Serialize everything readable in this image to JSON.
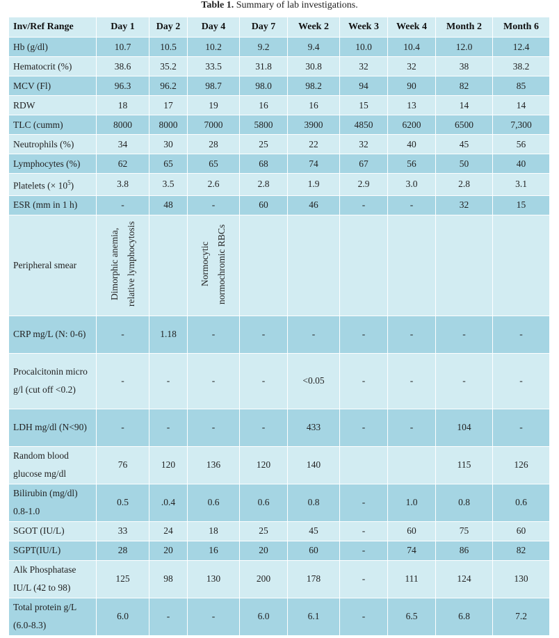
{
  "caption": {
    "label": "Table 1.",
    "text": "Summary of lab investigations."
  },
  "columns": [
    "Inv/Ref Range",
    "Day 1",
    "Day 2",
    "Day 4",
    "Day 7",
    "Week 2",
    "Week 3",
    "Week 4",
    "Month 2",
    "Month 6"
  ],
  "rows": [
    {
      "label": "Hb (g/dl)",
      "values": [
        "10.7",
        "10.5",
        "10.2",
        "9.2",
        "9.4",
        "10.0",
        "10.4",
        "12.0",
        "12.4"
      ]
    },
    {
      "label": "Hematocrit (%)",
      "values": [
        "38.6",
        "35.2",
        "33.5",
        "31.8",
        "30.8",
        "32",
        "32",
        "38",
        "38.2"
      ]
    },
    {
      "label": "MCV (Fl)",
      "values": [
        "96.3",
        "96.2",
        "98.7",
        "98.0",
        "98.2",
        "94",
        "90",
        "82",
        "85"
      ]
    },
    {
      "label": "RDW",
      "values": [
        "18",
        "17",
        "19",
        "16",
        "16",
        "15",
        "13",
        "14",
        "14"
      ]
    },
    {
      "label": "TLC (cumm)",
      "values": [
        "8000",
        "8000",
        "7000",
        "5800",
        "3900",
        "4850",
        "6200",
        "6500",
        "7,300"
      ]
    },
    {
      "label": "Neutrophils (%)",
      "values": [
        "34",
        "30",
        "28",
        "25",
        "22",
        "32",
        "40",
        "45",
        "56"
      ]
    },
    {
      "label": "Lymphocytes (%)",
      "values": [
        "62",
        "65",
        "65",
        "68",
        "74",
        "67",
        "56",
        "50",
        "40"
      ]
    },
    {
      "label": "Platelets (× 10",
      "sup": "5",
      "label_suffix": ")",
      "values": [
        "3.8",
        "3.5",
        "2.6",
        "2.8",
        "1.9",
        "2.9",
        "3.0",
        "2.8",
        "3.1"
      ]
    },
    {
      "label": "ESR (mm in 1 h)",
      "values": [
        "-",
        "48",
        "-",
        "60",
        "46",
        "-",
        "-",
        "32",
        "15"
      ]
    },
    {
      "label": "Peripheral smear",
      "vertical": true,
      "values": [
        "Dimorphic anemia, relative lymphocytosis",
        "",
        "Normocytic normochromic RBCs",
        "",
        "",
        "",
        "",
        "",
        ""
      ]
    },
    {
      "label": "CRP mg/L (N: 0-6)",
      "values": [
        "-",
        "1.18",
        "-",
        "-",
        "-",
        "-",
        "-",
        "-",
        "-"
      ]
    },
    {
      "label": "Procalcitonin micro g/l (cut off <0.2)",
      "values": [
        "-",
        "-",
        "-",
        "-",
        "<0.05",
        "-",
        "-",
        "-",
        "-"
      ]
    },
    {
      "label": "LDH mg/dl (N<90)",
      "values": [
        "-",
        "-",
        "-",
        "-",
        "433",
        "-",
        "-",
        "104",
        "-"
      ]
    },
    {
      "label": "Random blood glucose mg/dl",
      "values": [
        "76",
        "120",
        "136",
        "120",
        "140",
        "",
        "",
        "115",
        "126"
      ]
    },
    {
      "label": "Bilirubin (mg/dl) 0.8-1.0",
      "values": [
        "0.5",
        ".0.4",
        "0.6",
        "0.6",
        "0.8",
        "-",
        "1.0",
        "0.8",
        "0.6"
      ]
    },
    {
      "label": "SGOT (IU/L)",
      "values": [
        "33",
        "24",
        "18",
        "25",
        "45",
        "-",
        "60",
        "75",
        "60"
      ]
    },
    {
      "label": "SGPT(IU/L)",
      "values": [
        "28",
        "20",
        "16",
        "20",
        "60",
        "-",
        "74",
        "86",
        "82"
      ]
    },
    {
      "label": "Alk Phosphatase IU/L (42 to 98)",
      "values": [
        "125",
        "98",
        "130",
        "200",
        "178",
        "-",
        "111",
        "124",
        "130"
      ]
    },
    {
      "label": "Total protein g/L (6.0-8.3)",
      "values": [
        "6.0",
        "-",
        "-",
        "6.0",
        "6.1",
        "-",
        "6.5",
        "6.8",
        "7.2"
      ]
    }
  ]
}
